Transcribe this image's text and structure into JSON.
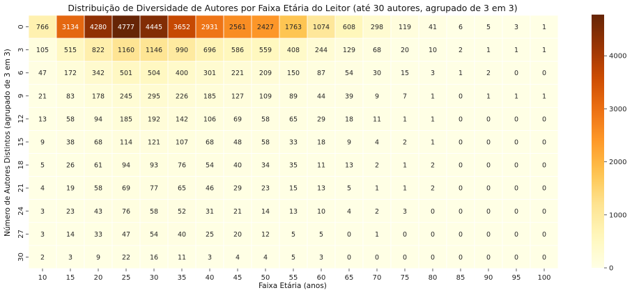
{
  "chart_data": {
    "type": "heatmap",
    "title": "Distribuição de Diversidade de Autores por Faixa Etária do Leitor (até 30 autores, agrupado de 3 em 3)",
    "xlabel": "Faixa Etária (anos)",
    "ylabel": "Número de Autores Distintos (agrupado de 3 em 3)",
    "x_categories": [
      "10",
      "15",
      "20",
      "25",
      "30",
      "35",
      "40",
      "45",
      "50",
      "55",
      "60",
      "65",
      "70",
      "75",
      "80",
      "85",
      "90",
      "95",
      "100"
    ],
    "y_categories": [
      "0",
      "3",
      "6",
      "9",
      "12",
      "15",
      "18",
      "21",
      "24",
      "27",
      "30"
    ],
    "values": [
      [
        766,
        3134,
        4280,
        4777,
        4445,
        3652,
        2931,
        2561,
        2427,
        1763,
        1074,
        608,
        298,
        119,
        41,
        6,
        5,
        3,
        1
      ],
      [
        105,
        515,
        822,
        1160,
        1146,
        990,
        696,
        586,
        559,
        408,
        244,
        129,
        68,
        20,
        10,
        2,
        1,
        1,
        1
      ],
      [
        47,
        172,
        342,
        501,
        504,
        400,
        301,
        221,
        209,
        150,
        87,
        54,
        30,
        15,
        3,
        1,
        2,
        0,
        0
      ],
      [
        21,
        83,
        178,
        245,
        295,
        226,
        185,
        127,
        109,
        89,
        44,
        39,
        9,
        7,
        1,
        0,
        1,
        1,
        1
      ],
      [
        13,
        58,
        94,
        185,
        192,
        142,
        106,
        69,
        58,
        65,
        29,
        18,
        11,
        1,
        1,
        0,
        0,
        0,
        0
      ],
      [
        9,
        38,
        68,
        114,
        121,
        107,
        68,
        48,
        58,
        33,
        18,
        9,
        4,
        2,
        1,
        0,
        0,
        0,
        0
      ],
      [
        5,
        26,
        61,
        94,
        93,
        76,
        54,
        40,
        34,
        35,
        11,
        13,
        2,
        1,
        2,
        0,
        0,
        0,
        0
      ],
      [
        4,
        19,
        58,
        69,
        77,
        65,
        46,
        29,
        23,
        15,
        13,
        5,
        1,
        1,
        2,
        0,
        0,
        0,
        0
      ],
      [
        3,
        23,
        43,
        76,
        58,
        52,
        31,
        21,
        14,
        13,
        10,
        4,
        2,
        3,
        0,
        0,
        0,
        0,
        0
      ],
      [
        3,
        14,
        33,
        47,
        54,
        40,
        25,
        20,
        12,
        5,
        5,
        0,
        1,
        0,
        0,
        0,
        0,
        0,
        0
      ],
      [
        2,
        3,
        9,
        22,
        16,
        11,
        3,
        4,
        4,
        5,
        3,
        0,
        0,
        0,
        0,
        0,
        0,
        0,
        0
      ]
    ],
    "colorbar": {
      "min": 0,
      "max": 4777,
      "ticks": [
        "0",
        "1000",
        "2000",
        "3000",
        "4000"
      ],
      "colormap": "YlOrBr"
    },
    "annotated": true,
    "grid_lines": "white"
  }
}
